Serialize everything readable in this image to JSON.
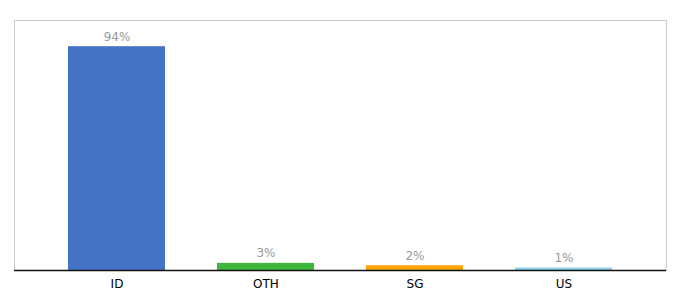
{
  "chart_data": {
    "type": "bar",
    "categories": [
      "ID",
      "OTH",
      "SG",
      "US"
    ],
    "values": [
      94,
      3,
      2,
      1
    ],
    "value_labels": [
      "94%",
      "3%",
      "2%",
      "1%"
    ],
    "colors": [
      "#4472C4",
      "#3db83d",
      "#FFA500",
      "#87CEEB"
    ],
    "ylim": [
      0,
      105
    ],
    "data_labels": true,
    "tick_labels": "x",
    "grid": false
  }
}
